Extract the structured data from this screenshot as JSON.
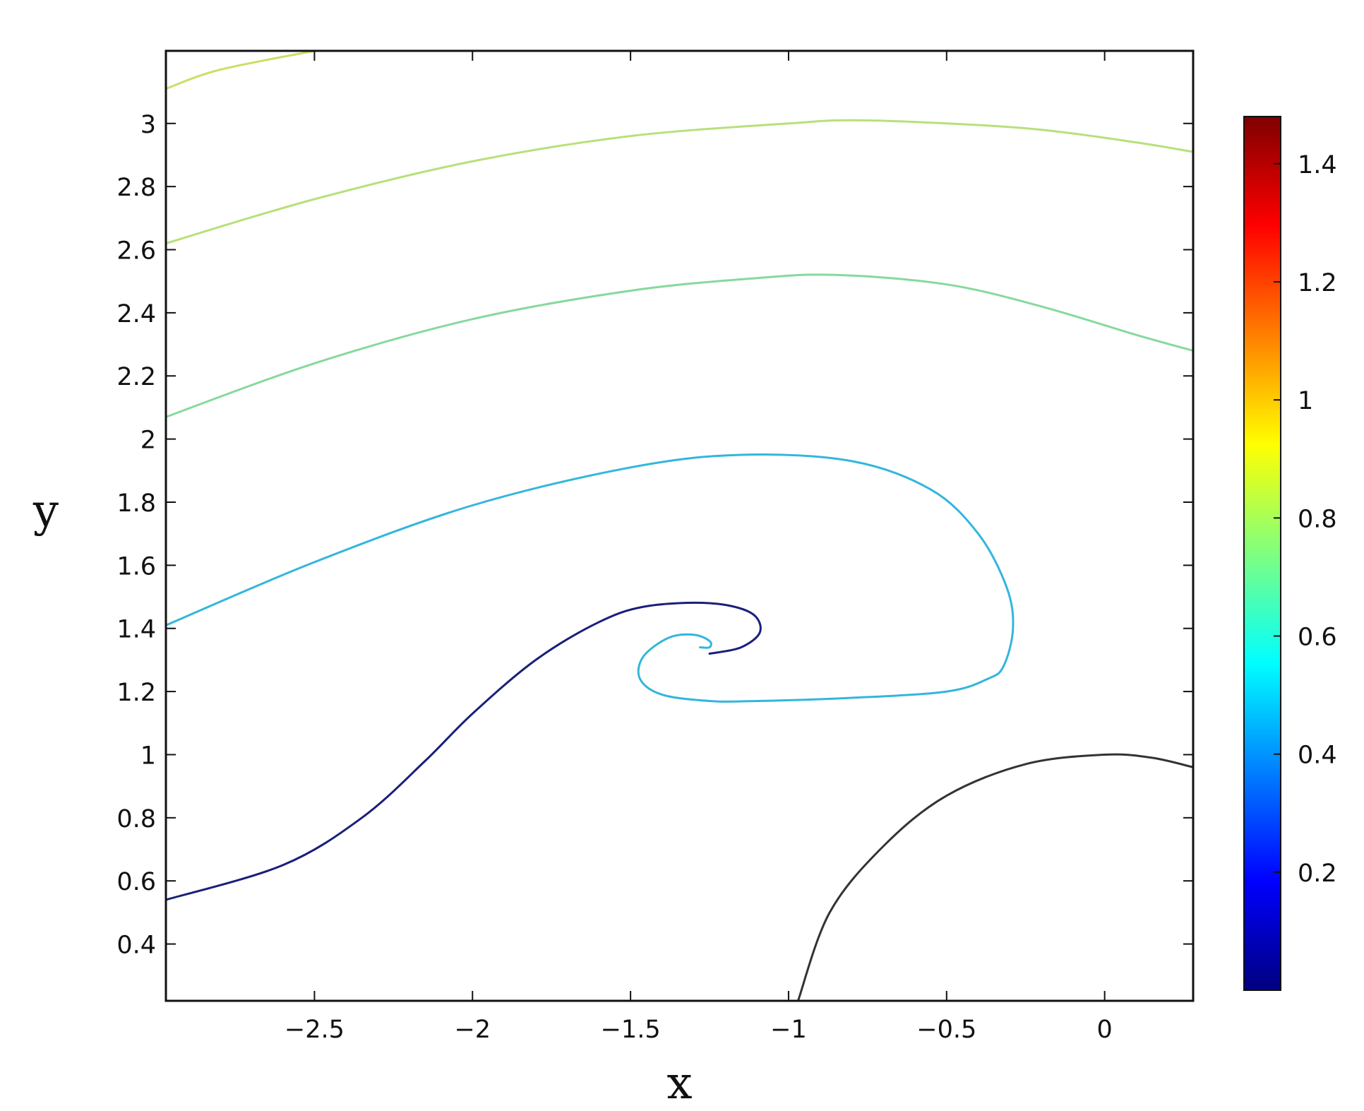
{
  "chart_data": {
    "type": "line",
    "title": "",
    "xlabel": "x",
    "ylabel": "y",
    "xlim": [
      -2.97,
      0.28
    ],
    "ylim": [
      0.22,
      3.23
    ],
    "x_ticks": [
      -2.5,
      -2,
      -1.5,
      -1,
      -0.5,
      0
    ],
    "x_tick_labels": [
      "−2.5",
      "−2",
      "−1.5",
      "−1",
      "−0.5",
      "0"
    ],
    "y_ticks": [
      0.4,
      0.6,
      0.8,
      1,
      1.2,
      1.4,
      1.6,
      1.8,
      2,
      2.2,
      2.4,
      2.6,
      2.8,
      3
    ],
    "y_tick_labels": [
      "0.4",
      "0.6",
      "0.8",
      "1",
      "1.2",
      "1.4",
      "1.6",
      "1.8",
      "2",
      "2.2",
      "2.4",
      "2.6",
      "2.8",
      "3"
    ],
    "grid": false,
    "colorbar": {
      "range": [
        0,
        1.48
      ],
      "ticks": [
        0.2,
        0.4,
        0.6,
        0.8,
        1,
        1.2,
        1.4
      ],
      "tick_labels": [
        "0.2",
        "0.4",
        "0.6",
        "0.8",
        "1",
        "1.2",
        "1.4"
      ],
      "colormap": [
        "#00007f",
        "#0000ff",
        "#007fff",
        "#00ffff",
        "#7fff7f",
        "#ffff00",
        "#ff7f00",
        "#ff0000",
        "#7f0000"
      ]
    },
    "series": [
      {
        "color": "#c8e064",
        "points": [
          [
            -2.97,
            3.11
          ],
          [
            -2.8,
            3.17
          ],
          [
            -2.5,
            3.23
          ]
        ]
      },
      {
        "color": "#b8e07a",
        "points": [
          [
            -2.97,
            2.62
          ],
          [
            -2.5,
            2.76
          ],
          [
            -2.0,
            2.88
          ],
          [
            -1.5,
            2.96
          ],
          [
            -1.0,
            3.0
          ],
          [
            -0.8,
            3.01
          ],
          [
            -0.5,
            3.0
          ],
          [
            -0.2,
            2.98
          ],
          [
            0.1,
            2.94
          ],
          [
            0.28,
            2.91
          ]
        ]
      },
      {
        "color": "#86d99c",
        "points": [
          [
            -2.97,
            2.07
          ],
          [
            -2.5,
            2.24
          ],
          [
            -2.0,
            2.38
          ],
          [
            -1.5,
            2.47
          ],
          [
            -1.1,
            2.51
          ],
          [
            -0.85,
            2.52
          ],
          [
            -0.5,
            2.49
          ],
          [
            -0.2,
            2.42
          ],
          [
            0.1,
            2.33
          ],
          [
            0.28,
            2.28
          ]
        ]
      },
      {
        "color": "#33b6dc",
        "points": [
          [
            -2.97,
            1.41
          ],
          [
            -2.5,
            1.61
          ],
          [
            -2.0,
            1.79
          ],
          [
            -1.5,
            1.91
          ],
          [
            -1.15,
            1.95
          ],
          [
            -0.8,
            1.93
          ],
          [
            -0.55,
            1.84
          ],
          [
            -0.4,
            1.7
          ],
          [
            -0.31,
            1.53
          ],
          [
            -0.29,
            1.4
          ],
          [
            -0.32,
            1.28
          ],
          [
            -0.37,
            1.24
          ],
          [
            -0.5,
            1.2
          ],
          [
            -0.8,
            1.18
          ],
          [
            -1.1,
            1.17
          ],
          [
            -1.25,
            1.17
          ],
          [
            -1.4,
            1.19
          ],
          [
            -1.47,
            1.24
          ],
          [
            -1.46,
            1.31
          ],
          [
            -1.38,
            1.37
          ],
          [
            -1.3,
            1.38
          ],
          [
            -1.25,
            1.36
          ],
          [
            -1.25,
            1.34
          ],
          [
            -1.28,
            1.34
          ]
        ]
      },
      {
        "color": "#1a1f7a",
        "points": [
          [
            -2.97,
            0.54
          ],
          [
            -2.6,
            0.65
          ],
          [
            -2.35,
            0.8
          ],
          [
            -2.15,
            0.98
          ],
          [
            -2.0,
            1.13
          ],
          [
            -1.8,
            1.3
          ],
          [
            -1.6,
            1.42
          ],
          [
            -1.45,
            1.47
          ],
          [
            -1.25,
            1.48
          ],
          [
            -1.12,
            1.45
          ],
          [
            -1.09,
            1.39
          ],
          [
            -1.15,
            1.34
          ],
          [
            -1.25,
            1.32
          ]
        ]
      },
      {
        "color": "#333333",
        "points": [
          [
            -0.97,
            0.22
          ],
          [
            -0.87,
            0.5
          ],
          [
            -0.7,
            0.71
          ],
          [
            -0.5,
            0.87
          ],
          [
            -0.25,
            0.97
          ],
          [
            0.0,
            1.0
          ],
          [
            0.15,
            0.99
          ],
          [
            0.28,
            0.96
          ]
        ]
      }
    ]
  }
}
